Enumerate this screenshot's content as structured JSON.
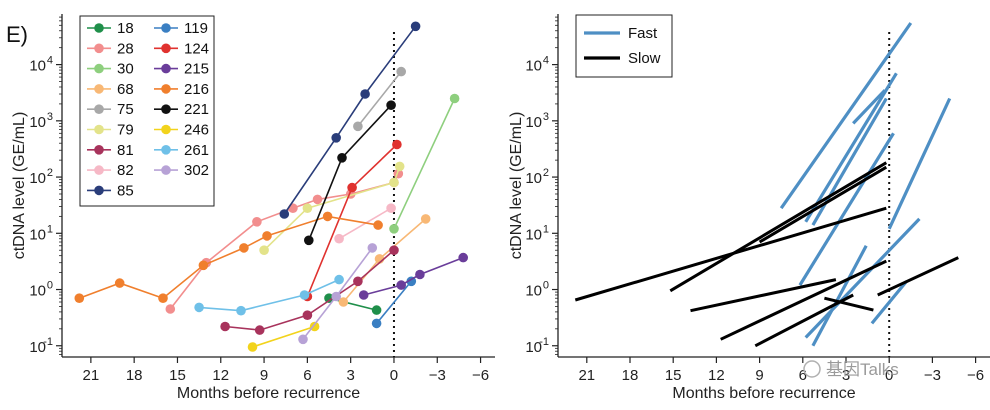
{
  "panel_letter": "E)",
  "watermark": "基因Talks",
  "chart_data": [
    {
      "type": "line",
      "panel": "left",
      "xlabel": "Months before recurrence",
      "ylabel": "ctDNA level (GE/mL)",
      "xlim": [
        23,
        -7
      ],
      "ylim_log10": [
        -1.2,
        4.9
      ],
      "x_ticks": [
        21,
        18,
        15,
        12,
        9,
        6,
        3,
        0,
        -3,
        -6
      ],
      "x_tick_labels": [
        "21",
        "18",
        "15",
        "12",
        "9",
        "6",
        "3",
        "0",
        "−3",
        "−6"
      ],
      "y_ticks": [
        -1,
        0,
        1,
        2,
        3,
        4
      ],
      "y_tick_labels": [
        "10",
        "10",
        "10",
        "10",
        "10",
        "10"
      ],
      "y_tick_exponents": [
        "-1",
        "0",
        "1",
        "2",
        "3",
        "4"
      ],
      "recurrence_line_x": 0,
      "series": [
        {
          "name": "18",
          "color": "#1f8f4a",
          "x": [
            4.5,
            1.2
          ],
          "y": [
            0.7,
            0.43
          ]
        },
        {
          "name": "28",
          "color": "#f28e8e",
          "x": [
            15.5,
            13,
            9.5,
            7,
            5.3,
            3,
            0,
            -0.3
          ],
          "y": [
            0.45,
            3.0,
            16,
            28,
            40,
            50,
            80,
            115
          ]
        },
        {
          "name": "30",
          "color": "#8ecf7e",
          "x": [
            0,
            -4.2
          ],
          "y": [
            12,
            2500
          ]
        },
        {
          "name": "68",
          "color": "#f8b875",
          "x": [
            3.5,
            1,
            -2.2
          ],
          "y": [
            0.6,
            3.5,
            18
          ]
        },
        {
          "name": "75",
          "color": "#a8a8a8",
          "x": [
            2.5,
            -0.5
          ],
          "y": [
            800,
            7500
          ]
        },
        {
          "name": "79",
          "color": "#e3e38a",
          "x": [
            9,
            6,
            0,
            -0.4
          ],
          "y": [
            5,
            28,
            80,
            155
          ]
        },
        {
          "name": "81",
          "color": "#a8335c",
          "x": [
            11.7,
            9.3,
            6,
            2.5,
            0
          ],
          "y": [
            0.22,
            0.19,
            0.35,
            1.4,
            5
          ]
        },
        {
          "name": "82",
          "color": "#f6b8c6",
          "x": [
            3.8,
            0.2
          ],
          "y": [
            8,
            28
          ]
        },
        {
          "name": "85",
          "color": "#2a3d7a",
          "x": [
            7.6,
            4,
            2,
            -1.5
          ],
          "y": [
            22,
            500,
            3000,
            48000
          ]
        },
        {
          "name": "119",
          "color": "#3a7fc2",
          "x": [
            1.2,
            -1.2
          ],
          "y": [
            0.25,
            1.4
          ]
        },
        {
          "name": "124",
          "color": "#e0322f",
          "x": [
            6,
            2.9,
            -0.2
          ],
          "y": [
            0.75,
            65,
            380
          ]
        },
        {
          "name": "215",
          "color": "#6a3d9a",
          "x": [
            2.1,
            -0.5,
            -1.8,
            -4.8
          ],
          "y": [
            0.8,
            1.2,
            1.85,
            3.7
          ]
        },
        {
          "name": "216",
          "color": "#f07f2d",
          "x": [
            21.8,
            19,
            16,
            13.2,
            10.4,
            8.8,
            4.6,
            1.1
          ],
          "y": [
            0.7,
            1.3,
            0.7,
            2.7,
            5.5,
            9,
            20,
            14
          ]
        },
        {
          "name": "221",
          "color": "#111111",
          "x": [
            5.9,
            3.6,
            0.2
          ],
          "y": [
            7.5,
            220,
            1900
          ]
        },
        {
          "name": "246",
          "color": "#f2d31c",
          "x": [
            9.8,
            5.5
          ],
          "y": [
            0.095,
            0.22
          ]
        },
        {
          "name": "261",
          "color": "#6fc0e8",
          "x": [
            13.5,
            10.6,
            6.2,
            3.8
          ],
          "y": [
            0.48,
            0.42,
            0.8,
            1.5
          ]
        },
        {
          "name": "302",
          "color": "#b7a2d6",
          "x": [
            6.3,
            4,
            1.5
          ],
          "y": [
            0.13,
            0.75,
            5.5
          ]
        }
      ]
    },
    {
      "type": "line",
      "panel": "right",
      "xlabel": "Months before recurrence",
      "ylabel": "ctDNA level (GE/mL)",
      "xlim": [
        23,
        -7
      ],
      "ylim_log10": [
        -1.2,
        4.9
      ],
      "x_ticks": [
        21,
        18,
        15,
        12,
        9,
        6,
        3,
        0,
        -3,
        -6
      ],
      "x_tick_labels": [
        "21",
        "18",
        "15",
        "12",
        "9",
        "6",
        "3",
        "0",
        "−3",
        "−6"
      ],
      "y_ticks": [
        -1,
        0,
        1,
        2,
        3,
        4
      ],
      "y_tick_labels": [
        "10",
        "10",
        "10",
        "10",
        "10",
        "10"
      ],
      "y_tick_exponents": [
        "-1",
        "0",
        "1",
        "2",
        "3",
        "4"
      ],
      "recurrence_line_x": 0,
      "legend": [
        {
          "name": "Fast",
          "color": "#4e8fc4"
        },
        {
          "name": "Slow",
          "color": "#000000"
        }
      ],
      "lines": [
        {
          "group": "Fast",
          "x": [
            7.5,
            -1.5
          ],
          "y": [
            28,
            55000
          ]
        },
        {
          "group": "Fast",
          "x": [
            5.8,
            -0.5
          ],
          "y": [
            16,
            7000
          ]
        },
        {
          "group": "Fast",
          "x": [
            5.3,
            0.2
          ],
          "y": [
            14,
            2500
          ]
        },
        {
          "group": "Fast",
          "x": [
            2.5,
            0.3
          ],
          "y": [
            900,
            3500
          ]
        },
        {
          "group": "Fast",
          "x": [
            6.2,
            -0.3
          ],
          "y": [
            1.2,
            600
          ]
        },
        {
          "group": "Fast",
          "x": [
            0,
            -4.2
          ],
          "y": [
            12,
            2500
          ]
        },
        {
          "group": "Fast",
          "x": [
            5.8,
            -2.1
          ],
          "y": [
            0.14,
            18
          ]
        },
        {
          "group": "Fast",
          "x": [
            5.3,
            1.6
          ],
          "y": [
            0.1,
            6
          ]
        },
        {
          "group": "Fast",
          "x": [
            1.2,
            -1.2
          ],
          "y": [
            0.25,
            1.4
          ]
        },
        {
          "group": "Slow",
          "x": [
            21.8,
            0.2
          ],
          "y": [
            0.65,
            28
          ]
        },
        {
          "group": "Slow",
          "x": [
            15.2,
            0.2
          ],
          "y": [
            0.95,
            180
          ]
        },
        {
          "group": "Slow",
          "x": [
            9,
            0.2
          ],
          "y": [
            7,
            150
          ]
        },
        {
          "group": "Slow",
          "x": [
            13.8,
            3.7
          ],
          "y": [
            0.42,
            1.5
          ]
        },
        {
          "group": "Slow",
          "x": [
            11.7,
            0.2
          ],
          "y": [
            0.13,
            3.2
          ]
        },
        {
          "group": "Slow",
          "x": [
            9.3,
            2.5
          ],
          "y": [
            0.1,
            0.8
          ]
        },
        {
          "group": "Slow",
          "x": [
            4.5,
            1.1
          ],
          "y": [
            0.7,
            0.43
          ]
        },
        {
          "group": "Slow",
          "x": [
            0.8,
            -4.8
          ],
          "y": [
            0.8,
            3.7
          ]
        }
      ]
    }
  ]
}
